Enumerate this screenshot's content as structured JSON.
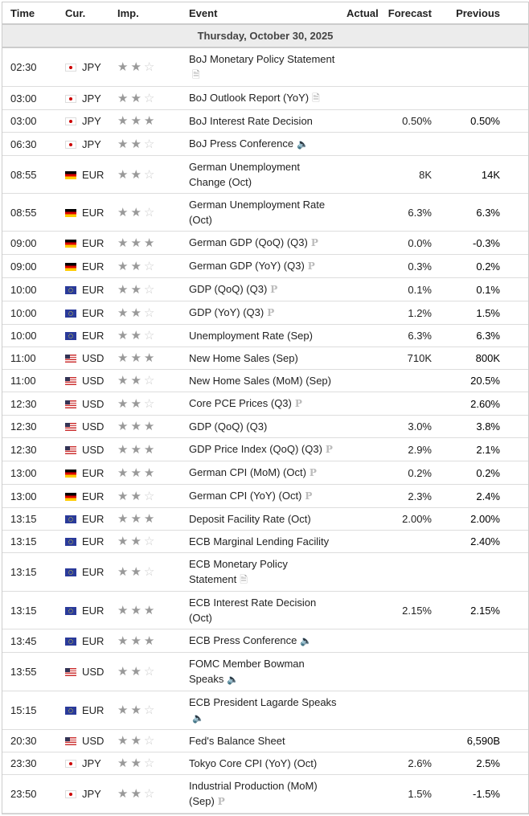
{
  "headers": {
    "time": "Time",
    "cur": "Cur.",
    "imp": "Imp.",
    "event": "Event",
    "actual": "Actual",
    "forecast": "Forecast",
    "previous": "Previous"
  },
  "date": "Thursday, October 30, 2025",
  "rows": [
    {
      "time": "02:30",
      "flag": "JP",
      "cur": "JPY",
      "imp": 2,
      "event": "BoJ Monetary Policy Statement",
      "icon": "document-icon",
      "actual": "",
      "forecast": "",
      "previous": ""
    },
    {
      "time": "03:00",
      "flag": "JP",
      "cur": "JPY",
      "imp": 2,
      "event": "BoJ Outlook Report (YoY)",
      "icon": "document-icon",
      "actual": "",
      "forecast": "",
      "previous": ""
    },
    {
      "time": "03:00",
      "flag": "JP",
      "cur": "JPY",
      "imp": 3,
      "event": "BoJ Interest Rate Decision",
      "icon": "",
      "actual": "",
      "forecast": "0.50%",
      "previous": "0.50%"
    },
    {
      "time": "06:30",
      "flag": "JP",
      "cur": "JPY",
      "imp": 2,
      "event": "BoJ Press Conference",
      "icon": "speaker-icon",
      "actual": "",
      "forecast": "",
      "previous": ""
    },
    {
      "time": "08:55",
      "flag": "DE",
      "cur": "EUR",
      "imp": 2,
      "event": "German Unemployment Change (Oct)",
      "icon": "",
      "actual": "",
      "forecast": "8K",
      "previous": "14K"
    },
    {
      "time": "08:55",
      "flag": "DE",
      "cur": "EUR",
      "imp": 2,
      "event": "German Unemployment Rate (Oct)",
      "icon": "",
      "actual": "",
      "forecast": "6.3%",
      "previous": "6.3%"
    },
    {
      "time": "09:00",
      "flag": "DE",
      "cur": "EUR",
      "imp": 3,
      "event": "German GDP (QoQ) (Q3)",
      "icon": "preliminary-icon",
      "actual": "",
      "forecast": "0.0%",
      "previous": "-0.3%"
    },
    {
      "time": "09:00",
      "flag": "DE",
      "cur": "EUR",
      "imp": 2,
      "event": "German GDP (YoY) (Q3)",
      "icon": "preliminary-icon",
      "actual": "",
      "forecast": "0.3%",
      "previous": "0.2%"
    },
    {
      "time": "10:00",
      "flag": "EU",
      "cur": "EUR",
      "imp": 2,
      "event": "GDP (QoQ) (Q3)",
      "icon": "preliminary-icon",
      "actual": "",
      "forecast": "0.1%",
      "previous": "0.1%"
    },
    {
      "time": "10:00",
      "flag": "EU",
      "cur": "EUR",
      "imp": 2,
      "event": "GDP (YoY) (Q3)",
      "icon": "preliminary-icon",
      "actual": "",
      "forecast": "1.2%",
      "previous": "1.5%"
    },
    {
      "time": "10:00",
      "flag": "EU",
      "cur": "EUR",
      "imp": 2,
      "event": "Unemployment Rate (Sep)",
      "icon": "",
      "actual": "",
      "forecast": "6.3%",
      "previous": "6.3%"
    },
    {
      "time": "11:00",
      "flag": "US",
      "cur": "USD",
      "imp": 3,
      "event": "New Home Sales (Sep)",
      "icon": "",
      "actual": "",
      "forecast": "710K",
      "previous": "800K"
    },
    {
      "time": "11:00",
      "flag": "US",
      "cur": "USD",
      "imp": 2,
      "event": "New Home Sales (MoM) (Sep)",
      "icon": "",
      "actual": "",
      "forecast": "",
      "previous": "20.5%"
    },
    {
      "time": "12:30",
      "flag": "US",
      "cur": "USD",
      "imp": 2,
      "event": "Core PCE Prices (Q3)",
      "icon": "preliminary-icon",
      "actual": "",
      "forecast": "",
      "previous": "2.60%"
    },
    {
      "time": "12:30",
      "flag": "US",
      "cur": "USD",
      "imp": 3,
      "event": "GDP (QoQ) (Q3)",
      "icon": "",
      "actual": "",
      "forecast": "3.0%",
      "previous": "3.8%"
    },
    {
      "time": "12:30",
      "flag": "US",
      "cur": "USD",
      "imp": 3,
      "event": "GDP Price Index (QoQ) (Q3)",
      "icon": "preliminary-icon",
      "actual": "",
      "forecast": "2.9%",
      "previous": "2.1%"
    },
    {
      "time": "13:00",
      "flag": "DE",
      "cur": "EUR",
      "imp": 3,
      "event": "German CPI (MoM) (Oct)",
      "icon": "preliminary-icon",
      "actual": "",
      "forecast": "0.2%",
      "previous": "0.2%"
    },
    {
      "time": "13:00",
      "flag": "DE",
      "cur": "EUR",
      "imp": 2,
      "event": "German CPI (YoY) (Oct)",
      "icon": "preliminary-icon",
      "actual": "",
      "forecast": "2.3%",
      "previous": "2.4%"
    },
    {
      "time": "13:15",
      "flag": "EU",
      "cur": "EUR",
      "imp": 3,
      "event": "Deposit Facility Rate (Oct)",
      "icon": "",
      "actual": "",
      "forecast": "2.00%",
      "previous": "2.00%"
    },
    {
      "time": "13:15",
      "flag": "EU",
      "cur": "EUR",
      "imp": 2,
      "event": "ECB Marginal Lending Facility",
      "icon": "",
      "actual": "",
      "forecast": "",
      "previous": "2.40%"
    },
    {
      "time": "13:15",
      "flag": "EU",
      "cur": "EUR",
      "imp": 2,
      "event": "ECB Monetary Policy Statement",
      "icon": "document-icon",
      "actual": "",
      "forecast": "",
      "previous": ""
    },
    {
      "time": "13:15",
      "flag": "EU",
      "cur": "EUR",
      "imp": 3,
      "event": "ECB Interest Rate Decision (Oct)",
      "icon": "",
      "actual": "",
      "forecast": "2.15%",
      "previous": "2.15%"
    },
    {
      "time": "13:45",
      "flag": "EU",
      "cur": "EUR",
      "imp": 3,
      "event": "ECB Press Conference",
      "icon": "speaker-icon",
      "actual": "",
      "forecast": "",
      "previous": ""
    },
    {
      "time": "13:55",
      "flag": "US",
      "cur": "USD",
      "imp": 2,
      "event": "FOMC Member Bowman Speaks",
      "icon": "speaker-icon",
      "actual": "",
      "forecast": "",
      "previous": ""
    },
    {
      "time": "15:15",
      "flag": "EU",
      "cur": "EUR",
      "imp": 2,
      "event": "ECB President Lagarde Speaks",
      "icon": "speaker-icon",
      "actual": "",
      "forecast": "",
      "previous": ""
    },
    {
      "time": "20:30",
      "flag": "US",
      "cur": "USD",
      "imp": 2,
      "event": "Fed's Balance Sheet",
      "icon": "",
      "actual": "",
      "forecast": "",
      "previous": "6,590B"
    },
    {
      "time": "23:30",
      "flag": "JP",
      "cur": "JPY",
      "imp": 2,
      "event": "Tokyo Core CPI (YoY) (Oct)",
      "icon": "",
      "actual": "",
      "forecast": "2.6%",
      "previous": "2.5%"
    },
    {
      "time": "23:50",
      "flag": "JP",
      "cur": "JPY",
      "imp": 2,
      "event": "Industrial Production (MoM) (Sep)",
      "icon": "preliminary-icon",
      "actual": "",
      "forecast": "1.5%",
      "previous": "-1.5%"
    }
  ]
}
